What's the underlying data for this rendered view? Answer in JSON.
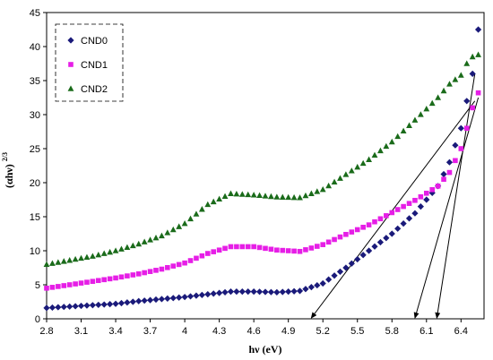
{
  "chart_data": {
    "type": "scatter",
    "xlabel": "hν (eV)",
    "ylabel": "(αhν)",
    "ylabel_exponent": "2/3",
    "xlim": [
      2.8,
      6.6
    ],
    "ylim": [
      0,
      45
    ],
    "xticks": [
      "2.8",
      "3.1",
      "3.4",
      "3.7",
      "4",
      "4.3",
      "4.6",
      "4.9",
      "5.2",
      "5.5",
      "5.8",
      "6.1",
      "6.4"
    ],
    "xtick_values": [
      2.8,
      3.1,
      3.4,
      3.7,
      4.0,
      4.3,
      4.6,
      4.9,
      5.2,
      5.5,
      5.8,
      6.1,
      6.4
    ],
    "yticks": [
      "0",
      "5",
      "10",
      "15",
      "20",
      "25",
      "30",
      "35",
      "40",
      "45"
    ],
    "ytick_values": [
      0,
      5,
      10,
      15,
      20,
      25,
      30,
      35,
      40,
      45
    ],
    "grid": false,
    "legend_position": "top-left",
    "series": [
      {
        "name": "CND0",
        "marker": "diamond",
        "color": "#1a1a7a",
        "x": [
          2.8,
          3.0,
          3.2,
          3.4,
          3.6,
          3.8,
          4.0,
          4.2,
          4.4,
          4.6,
          4.8,
          5.0,
          5.2,
          5.4,
          5.6,
          5.8,
          6.0,
          6.2,
          6.3,
          6.4,
          6.45,
          6.5,
          6.55
        ],
        "y": [
          1.6,
          1.8,
          2.0,
          2.2,
          2.6,
          2.9,
          3.2,
          3.6,
          4.0,
          4.0,
          3.9,
          4.1,
          5.2,
          7.5,
          10.0,
          12.5,
          15.5,
          19.5,
          23.0,
          28.0,
          32.0,
          36.0,
          42.5
        ]
      },
      {
        "name": "CND1",
        "marker": "square",
        "color": "#e61ee6",
        "x": [
          2.8,
          3.0,
          3.2,
          3.4,
          3.6,
          3.8,
          4.0,
          4.2,
          4.4,
          4.6,
          4.8,
          5.0,
          5.2,
          5.4,
          5.6,
          5.8,
          6.0,
          6.2,
          6.3,
          6.4,
          6.45,
          6.5,
          6.55
        ],
        "y": [
          4.5,
          5.0,
          5.5,
          6.0,
          6.6,
          7.3,
          8.2,
          9.6,
          10.6,
          10.6,
          10.1,
          9.9,
          10.9,
          12.4,
          13.8,
          15.6,
          17.4,
          19.5,
          21.5,
          25.0,
          28.0,
          31.0,
          33.2
        ]
      },
      {
        "name": "CND2",
        "marker": "triangle",
        "color": "#1a6b1a",
        "x": [
          2.8,
          3.0,
          3.2,
          3.4,
          3.6,
          3.8,
          4.0,
          4.2,
          4.4,
          4.6,
          4.8,
          5.0,
          5.2,
          5.4,
          5.6,
          5.8,
          6.0,
          6.2,
          6.3,
          6.4,
          6.45,
          6.5,
          6.55
        ],
        "y": [
          8.0,
          8.6,
          9.2,
          10.0,
          11.0,
          12.2,
          14.0,
          16.8,
          18.4,
          18.2,
          17.9,
          17.8,
          19.0,
          21.2,
          23.4,
          26.0,
          29.2,
          32.5,
          34.5,
          35.8,
          37.5,
          38.5,
          38.8
        ]
      }
    ],
    "tangent_lines": [
      {
        "from": [
          6.52,
          32.0
        ],
        "to": [
          5.1,
          0.0
        ]
      },
      {
        "from": [
          6.55,
          32.5
        ],
        "to": [
          6.0,
          0.0
        ]
      },
      {
        "from": [
          6.52,
          36.0
        ],
        "to": [
          6.19,
          0.0
        ]
      }
    ]
  }
}
